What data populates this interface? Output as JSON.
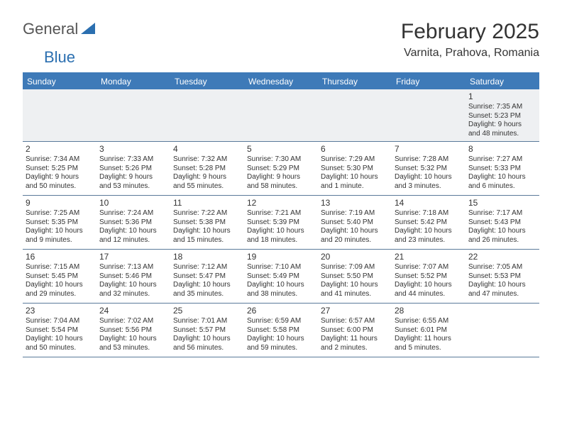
{
  "brand": {
    "part1": "General",
    "part2": "Blue"
  },
  "title": "February 2025",
  "location": "Varnita, Prahova, Romania",
  "colors": {
    "header_bg": "#3e7ab8",
    "header_text": "#ffffff",
    "rule": "#5a7a9a",
    "first_row_bg": "#eef0f2",
    "text": "#333333",
    "brand_gray": "#555555",
    "brand_blue": "#2b6fb0"
  },
  "dayNames": [
    "Sunday",
    "Monday",
    "Tuesday",
    "Wednesday",
    "Thursday",
    "Friday",
    "Saturday"
  ],
  "weeks": [
    [
      null,
      null,
      null,
      null,
      null,
      null,
      {
        "n": "1",
        "sr": "Sunrise: 7:35 AM",
        "ss": "Sunset: 5:23 PM",
        "d1": "Daylight: 9 hours",
        "d2": "and 48 minutes."
      }
    ],
    [
      {
        "n": "2",
        "sr": "Sunrise: 7:34 AM",
        "ss": "Sunset: 5:25 PM",
        "d1": "Daylight: 9 hours",
        "d2": "and 50 minutes."
      },
      {
        "n": "3",
        "sr": "Sunrise: 7:33 AM",
        "ss": "Sunset: 5:26 PM",
        "d1": "Daylight: 9 hours",
        "d2": "and 53 minutes."
      },
      {
        "n": "4",
        "sr": "Sunrise: 7:32 AM",
        "ss": "Sunset: 5:28 PM",
        "d1": "Daylight: 9 hours",
        "d2": "and 55 minutes."
      },
      {
        "n": "5",
        "sr": "Sunrise: 7:30 AM",
        "ss": "Sunset: 5:29 PM",
        "d1": "Daylight: 9 hours",
        "d2": "and 58 minutes."
      },
      {
        "n": "6",
        "sr": "Sunrise: 7:29 AM",
        "ss": "Sunset: 5:30 PM",
        "d1": "Daylight: 10 hours",
        "d2": "and 1 minute."
      },
      {
        "n": "7",
        "sr": "Sunrise: 7:28 AM",
        "ss": "Sunset: 5:32 PM",
        "d1": "Daylight: 10 hours",
        "d2": "and 3 minutes."
      },
      {
        "n": "8",
        "sr": "Sunrise: 7:27 AM",
        "ss": "Sunset: 5:33 PM",
        "d1": "Daylight: 10 hours",
        "d2": "and 6 minutes."
      }
    ],
    [
      {
        "n": "9",
        "sr": "Sunrise: 7:25 AM",
        "ss": "Sunset: 5:35 PM",
        "d1": "Daylight: 10 hours",
        "d2": "and 9 minutes."
      },
      {
        "n": "10",
        "sr": "Sunrise: 7:24 AM",
        "ss": "Sunset: 5:36 PM",
        "d1": "Daylight: 10 hours",
        "d2": "and 12 minutes."
      },
      {
        "n": "11",
        "sr": "Sunrise: 7:22 AM",
        "ss": "Sunset: 5:38 PM",
        "d1": "Daylight: 10 hours",
        "d2": "and 15 minutes."
      },
      {
        "n": "12",
        "sr": "Sunrise: 7:21 AM",
        "ss": "Sunset: 5:39 PM",
        "d1": "Daylight: 10 hours",
        "d2": "and 18 minutes."
      },
      {
        "n": "13",
        "sr": "Sunrise: 7:19 AM",
        "ss": "Sunset: 5:40 PM",
        "d1": "Daylight: 10 hours",
        "d2": "and 20 minutes."
      },
      {
        "n": "14",
        "sr": "Sunrise: 7:18 AM",
        "ss": "Sunset: 5:42 PM",
        "d1": "Daylight: 10 hours",
        "d2": "and 23 minutes."
      },
      {
        "n": "15",
        "sr": "Sunrise: 7:17 AM",
        "ss": "Sunset: 5:43 PM",
        "d1": "Daylight: 10 hours",
        "d2": "and 26 minutes."
      }
    ],
    [
      {
        "n": "16",
        "sr": "Sunrise: 7:15 AM",
        "ss": "Sunset: 5:45 PM",
        "d1": "Daylight: 10 hours",
        "d2": "and 29 minutes."
      },
      {
        "n": "17",
        "sr": "Sunrise: 7:13 AM",
        "ss": "Sunset: 5:46 PM",
        "d1": "Daylight: 10 hours",
        "d2": "and 32 minutes."
      },
      {
        "n": "18",
        "sr": "Sunrise: 7:12 AM",
        "ss": "Sunset: 5:47 PM",
        "d1": "Daylight: 10 hours",
        "d2": "and 35 minutes."
      },
      {
        "n": "19",
        "sr": "Sunrise: 7:10 AM",
        "ss": "Sunset: 5:49 PM",
        "d1": "Daylight: 10 hours",
        "d2": "and 38 minutes."
      },
      {
        "n": "20",
        "sr": "Sunrise: 7:09 AM",
        "ss": "Sunset: 5:50 PM",
        "d1": "Daylight: 10 hours",
        "d2": "and 41 minutes."
      },
      {
        "n": "21",
        "sr": "Sunrise: 7:07 AM",
        "ss": "Sunset: 5:52 PM",
        "d1": "Daylight: 10 hours",
        "d2": "and 44 minutes."
      },
      {
        "n": "22",
        "sr": "Sunrise: 7:05 AM",
        "ss": "Sunset: 5:53 PM",
        "d1": "Daylight: 10 hours",
        "d2": "and 47 minutes."
      }
    ],
    [
      {
        "n": "23",
        "sr": "Sunrise: 7:04 AM",
        "ss": "Sunset: 5:54 PM",
        "d1": "Daylight: 10 hours",
        "d2": "and 50 minutes."
      },
      {
        "n": "24",
        "sr": "Sunrise: 7:02 AM",
        "ss": "Sunset: 5:56 PM",
        "d1": "Daylight: 10 hours",
        "d2": "and 53 minutes."
      },
      {
        "n": "25",
        "sr": "Sunrise: 7:01 AM",
        "ss": "Sunset: 5:57 PM",
        "d1": "Daylight: 10 hours",
        "d2": "and 56 minutes."
      },
      {
        "n": "26",
        "sr": "Sunrise: 6:59 AM",
        "ss": "Sunset: 5:58 PM",
        "d1": "Daylight: 10 hours",
        "d2": "and 59 minutes."
      },
      {
        "n": "27",
        "sr": "Sunrise: 6:57 AM",
        "ss": "Sunset: 6:00 PM",
        "d1": "Daylight: 11 hours",
        "d2": "and 2 minutes."
      },
      {
        "n": "28",
        "sr": "Sunrise: 6:55 AM",
        "ss": "Sunset: 6:01 PM",
        "d1": "Daylight: 11 hours",
        "d2": "and 5 minutes."
      },
      null
    ]
  ]
}
